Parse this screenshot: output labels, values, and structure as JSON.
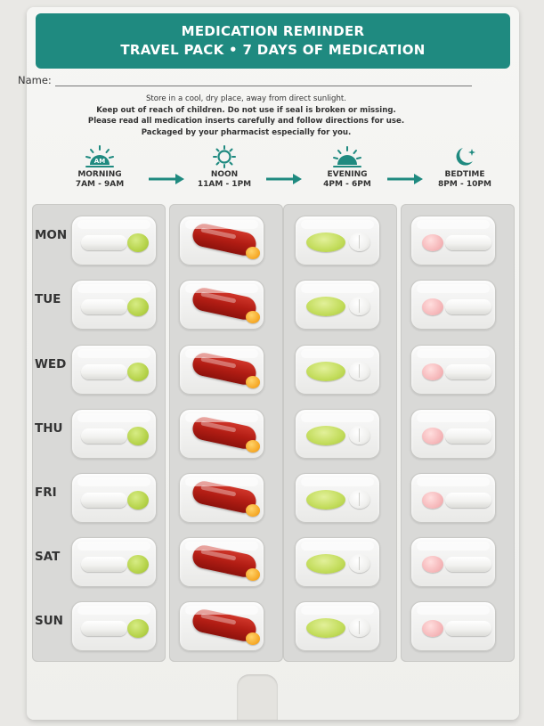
{
  "header": {
    "title_line1": "MEDICATION REMINDER",
    "title_line2": "TRAVEL PACK • 7 DAYS OF MEDICATION",
    "background_color": "#1f8a80"
  },
  "name_field": {
    "label": "Name:",
    "value": ""
  },
  "instructions": [
    "Store in a cool, dry place, away from direct sunlight.",
    "Keep out of reach of children. Do not use if seal is broken or missing.",
    "Please read all medication inserts carefully and follow directions for use.",
    "Packaged by your pharmacist especially for you."
  ],
  "time_slots": [
    {
      "label": "MORNING",
      "range": "7AM - 9AM",
      "icon": "sunrise-am-icon"
    },
    {
      "label": "NOON",
      "range": "11AM - 1PM",
      "icon": "sun-icon"
    },
    {
      "label": "EVENING",
      "range": "4PM - 6PM",
      "icon": "sunset-icon"
    },
    {
      "label": "BEDTIME",
      "range": "8PM - 10PM",
      "icon": "moon-star-icon"
    }
  ],
  "days": [
    "MON",
    "TUE",
    "WED",
    "THU",
    "FRI",
    "SAT",
    "SUN"
  ],
  "slot_pills": [
    [
      "white-capsule",
      "green-round-tablet"
    ],
    [
      "red-capsule",
      "orange-small-tablet"
    ],
    [
      "green-oval-tablet",
      "white-scored-tablet"
    ],
    [
      "pink-round-tablet",
      "white-capsule"
    ]
  ],
  "colors": {
    "teal": "#1f8a80",
    "red_capsule": "#b21d14",
    "green_tablet": "#b6d34a",
    "pink_tablet": "#f6b9bb",
    "orange_tablet": "#f5a623"
  },
  "ab": {
    "am": "AM"
  }
}
